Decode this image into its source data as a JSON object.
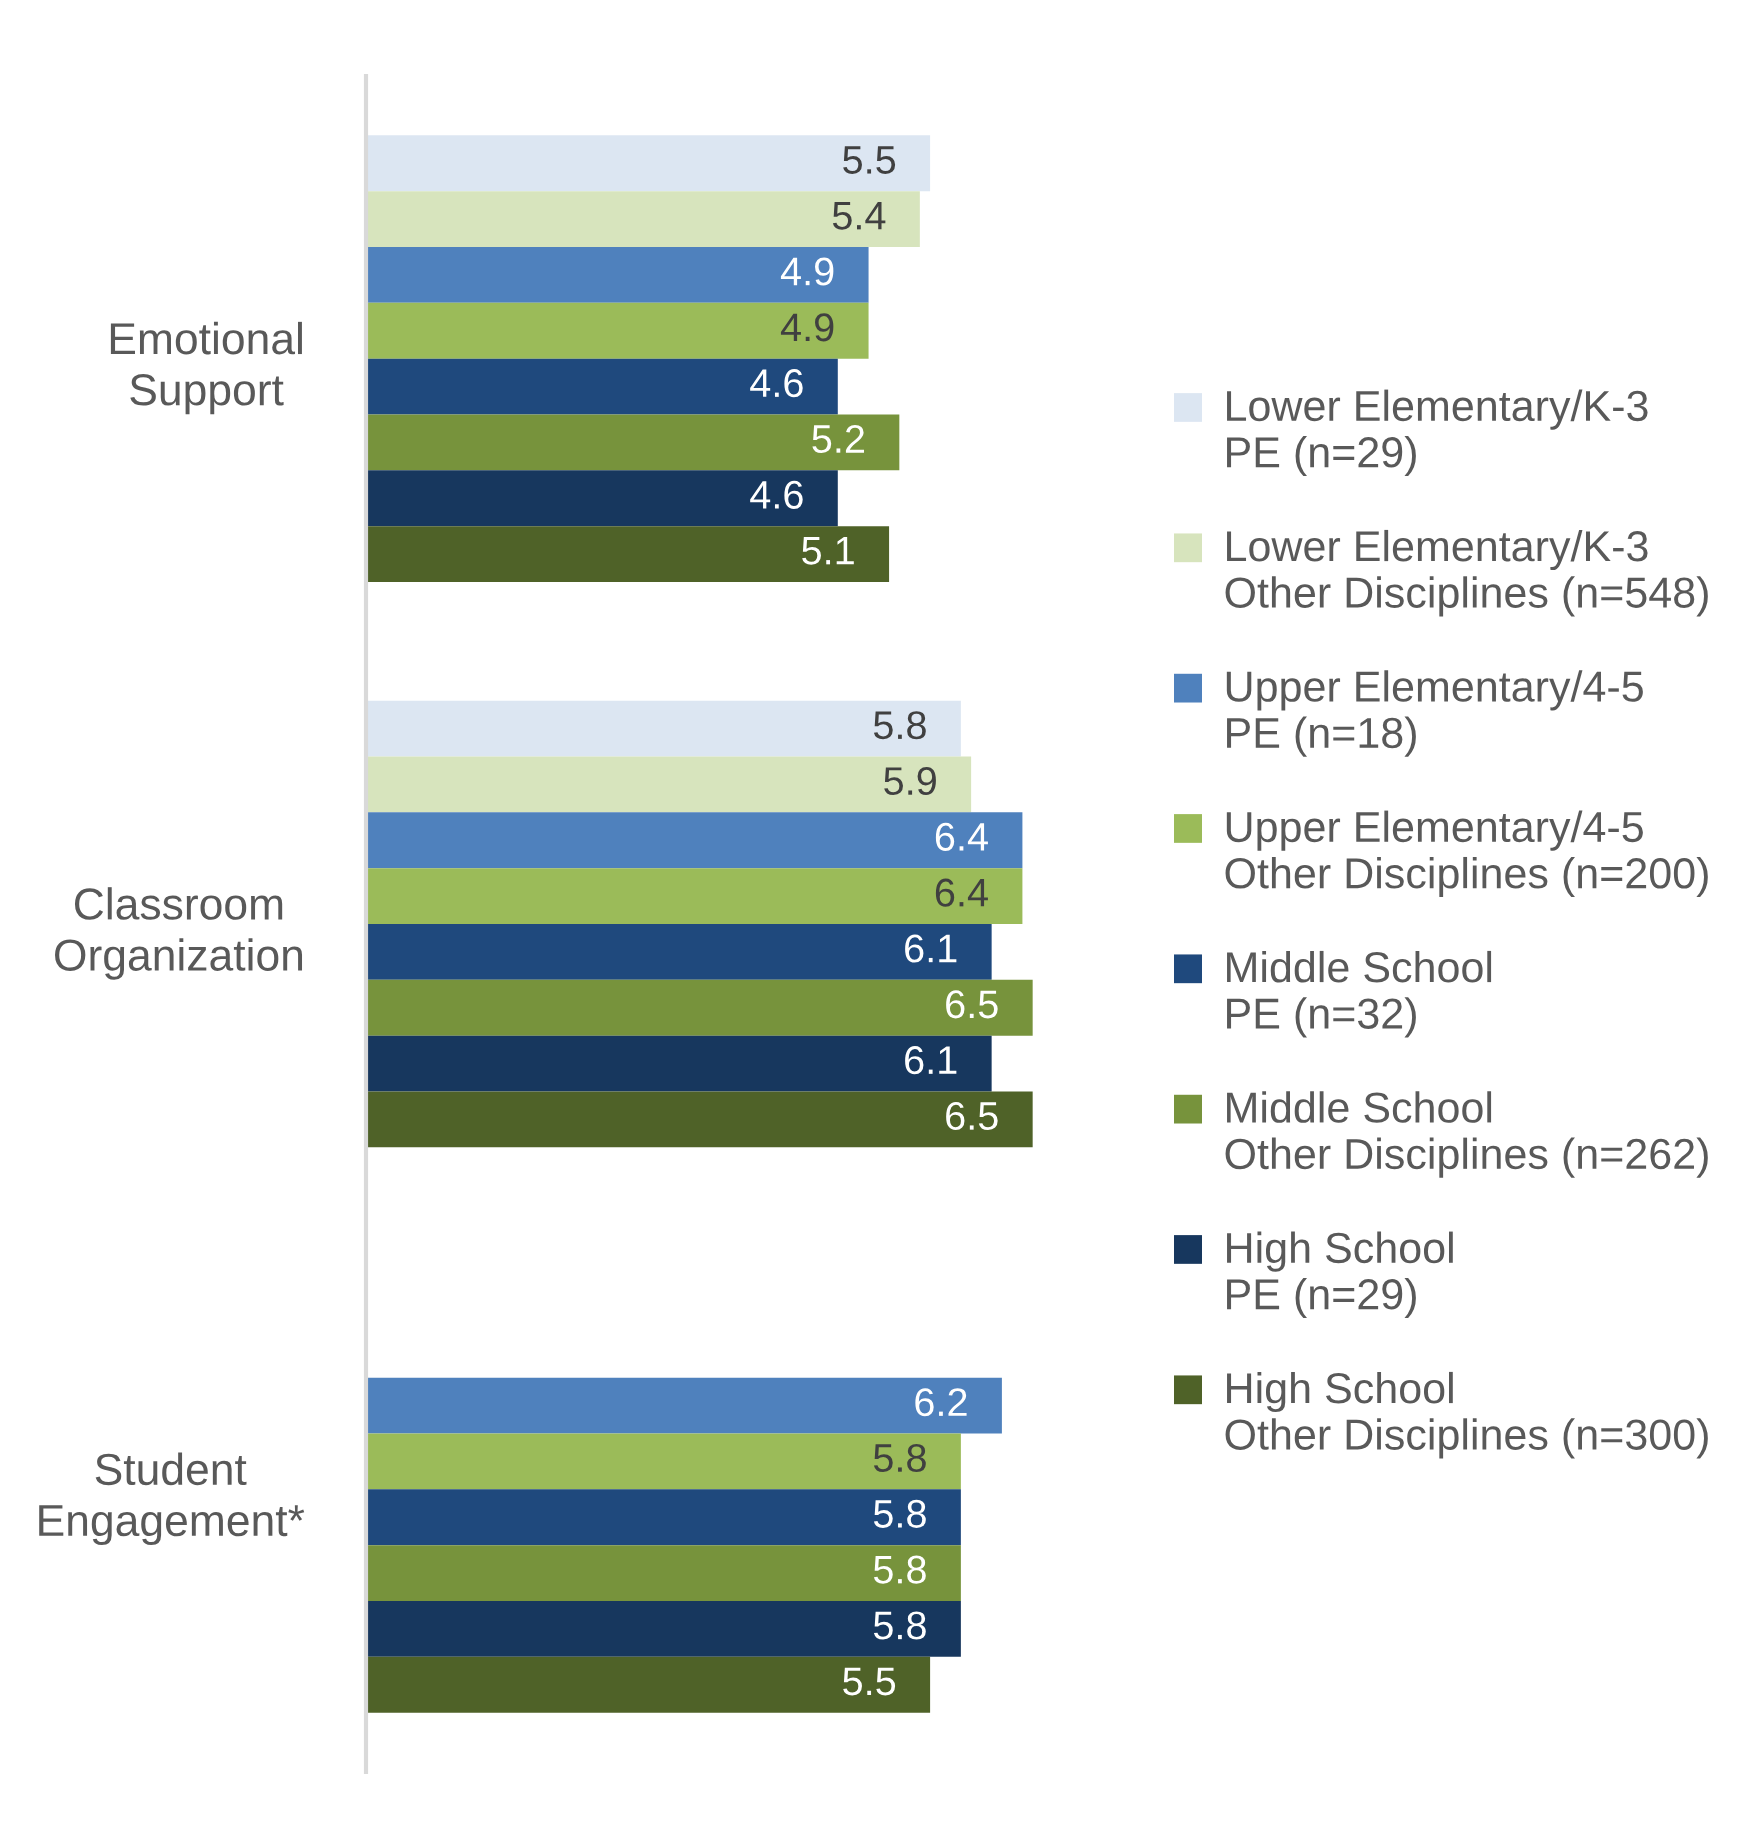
{
  "chart_data": {
    "type": "bar",
    "orientation": "horizontal",
    "categories": [
      "Emotional\nSupport",
      "Classroom\nOrganization",
      "Student\nEngagement*"
    ],
    "series": [
      {
        "name": "Lower Elementary/K-3\nPE (n=29)",
        "color": "#dce6f2",
        "values": [
          5.5,
          5.8,
          null
        ]
      },
      {
        "name": "Lower Elementary/K-3\nOther Disciplines (n=548)",
        "color": "#d7e4bd",
        "values": [
          5.4,
          5.9,
          null
        ]
      },
      {
        "name": "Upper Elementary/4-5\nPE (n=18)",
        "color": "#4f81bd",
        "values": [
          4.9,
          6.4,
          6.2
        ]
      },
      {
        "name": "Upper Elementary/4-5\nOther Disciplines (n=200)",
        "color": "#9bbb59",
        "values": [
          4.9,
          6.4,
          5.8
        ]
      },
      {
        "name": "Middle School\nPE (n=32)",
        "color": "#1f497d",
        "values": [
          4.6,
          6.1,
          5.8
        ]
      },
      {
        "name": "Middle School\nOther Disciplines (n=262)",
        "color": "#77933c",
        "values": [
          5.2,
          6.5,
          5.8
        ]
      },
      {
        "name": "High School\nPE (n=29)",
        "color": "#17375e",
        "values": [
          4.6,
          6.1,
          5.8
        ]
      },
      {
        "name": "High School\nOther Disciplines (n=300)",
        "color": "#4f6228",
        "values": [
          5.1,
          6.5,
          5.5
        ]
      }
    ],
    "tick_labels": "y",
    "data_labels": true,
    "legend": "right"
  }
}
